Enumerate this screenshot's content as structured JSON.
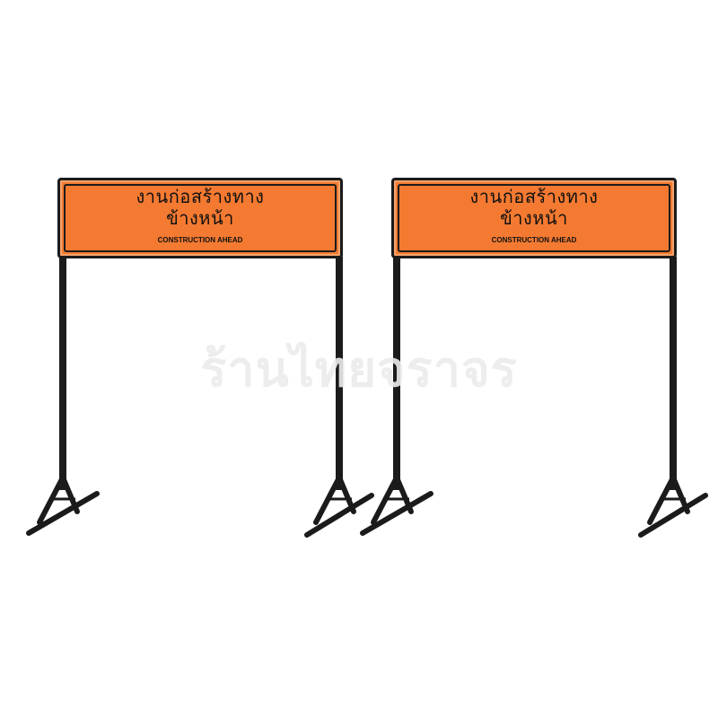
{
  "signs": [
    {
      "thai_line_1": "งานก่อสร้างทาง",
      "thai_line_2": "ข้างหน้า",
      "english": "CONSTRUCTION AHEAD"
    },
    {
      "thai_line_1": "งานก่อสร้างทาง",
      "thai_line_2": "ข้างหน้า",
      "english": "CONSTRUCTION AHEAD"
    }
  ],
  "watermark": "ร้านไทยจราจร",
  "colors": {
    "sign_orange": "#f47a31",
    "frame_black": "#1b1b1b",
    "background": "#ffffff",
    "watermark": "#ececec"
  }
}
